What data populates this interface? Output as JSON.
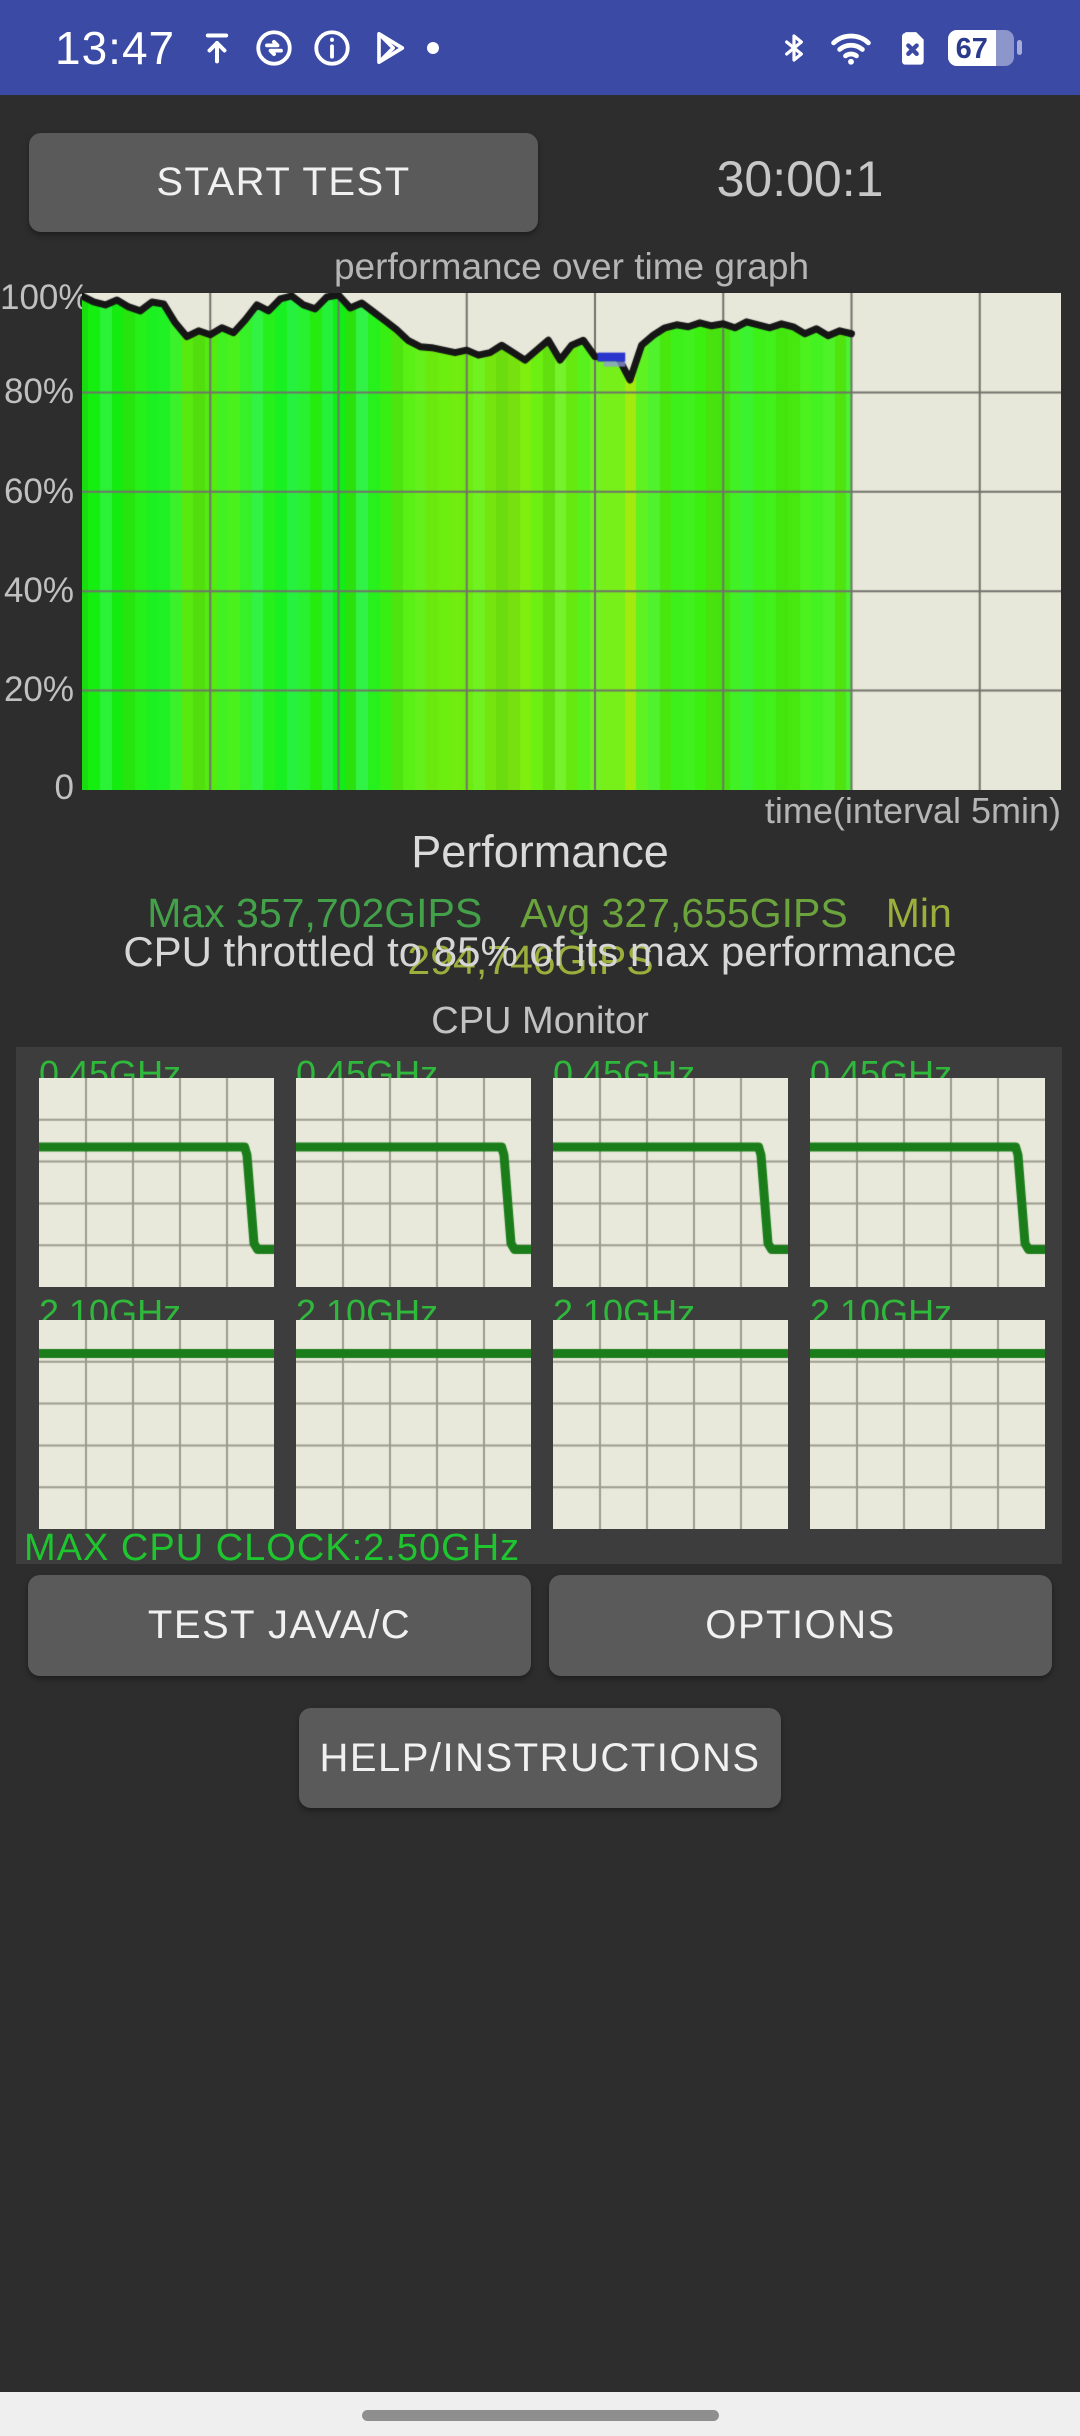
{
  "status_bar": {
    "time": "13:47",
    "battery_percent": "67",
    "bg_color": "#3B4AA5",
    "left_icons": [
      "upload-icon",
      "sync-icon",
      "info-icon",
      "play-store-icon",
      "notification-dot"
    ],
    "right_icons": [
      "bluetooth-icon",
      "wifi-icon",
      "sim-x-icon",
      "battery-icon"
    ]
  },
  "header": {
    "start_button_label": "START TEST",
    "timer": "30:00:1"
  },
  "chart_data": [
    {
      "id": "performance_graph",
      "type": "area",
      "title": "performance over time graph",
      "xlabel": "time(interval 5min)",
      "ytick_labels": [
        "100%",
        "80%",
        "60%",
        "40%",
        "20%",
        "0"
      ],
      "ylim": [
        0,
        100
      ],
      "x_interval_minutes": 5,
      "duration_minutes": 30,
      "data_end_frac": 0.786,
      "x_gridline_step_frac": 0.131,
      "grid_on": true,
      "values_percent": [
        99.4,
        98.2,
        97.6,
        98.6,
        97.2,
        96.4,
        98.2,
        97.8,
        94.0,
        91.2,
        92.4,
        91.6,
        93.0,
        92.0,
        94.6,
        97.6,
        96.4,
        98.8,
        99.4,
        97.6,
        96.8,
        99.2,
        99.6,
        97.0,
        98.0,
        96.2,
        94.4,
        92.6,
        90.4,
        89.2,
        89.0,
        88.5,
        88.0,
        88.5,
        87.5,
        88.0,
        89.5,
        88.0,
        86.5,
        88.5,
        90.5,
        86.5,
        89.5,
        90.5,
        87.2,
        87.0,
        87.0,
        82.5,
        89.5,
        91.5,
        93.0,
        93.6,
        93.2,
        94.0,
        93.4,
        93.8,
        93.0,
        94.2,
        93.6,
        93.0,
        93.8,
        93.2,
        91.8,
        92.8,
        91.4,
        92.4,
        91.8
      ],
      "blue_marker": {
        "start_frac": 0.67,
        "end_frac": 0.706,
        "value_percent": 87
      },
      "colors": {
        "plot_bg": "#E8E8DA",
        "grid": "#72726B",
        "line": "#161616",
        "marker_dark": "#2A35CE",
        "marker_light": "#9098E4"
      }
    },
    {
      "id": "cpu_monitor",
      "type": "line",
      "title": "CPU Monitor",
      "max_clock_label": "MAX CPU CLOCK:2.50GHz",
      "y_max_ghz": 2.5,
      "grid_divisions": 5,
      "cores": [
        {
          "label": "0.45GHz",
          "points": [
            [
              0,
              1.675
            ],
            [
              0.875,
              1.675
            ],
            [
              0.885,
              1.58
            ],
            [
              0.915,
              0.52
            ],
            [
              0.93,
              0.45
            ],
            [
              1,
              0.45
            ]
          ]
        },
        {
          "label": "0.45GHz",
          "points": [
            [
              0,
              1.675
            ],
            [
              0.875,
              1.675
            ],
            [
              0.885,
              1.58
            ],
            [
              0.915,
              0.52
            ],
            [
              0.93,
              0.45
            ],
            [
              1,
              0.45
            ]
          ]
        },
        {
          "label": "0.45GHz",
          "points": [
            [
              0,
              1.675
            ],
            [
              0.875,
              1.675
            ],
            [
              0.885,
              1.58
            ],
            [
              0.915,
              0.52
            ],
            [
              0.93,
              0.45
            ],
            [
              1,
              0.45
            ]
          ]
        },
        {
          "label": "0.45GHz",
          "points": [
            [
              0,
              1.675
            ],
            [
              0.875,
              1.675
            ],
            [
              0.885,
              1.58
            ],
            [
              0.915,
              0.52
            ],
            [
              0.93,
              0.45
            ],
            [
              1,
              0.45
            ]
          ]
        },
        {
          "label": "2.10GHz",
          "points": [
            [
              0,
              2.1
            ],
            [
              1,
              2.1
            ]
          ]
        },
        {
          "label": "2.10GHz",
          "points": [
            [
              0,
              2.1
            ],
            [
              1,
              2.1
            ]
          ]
        },
        {
          "label": "2.10GHz",
          "points": [
            [
              0,
              2.1
            ],
            [
              1,
              2.1
            ]
          ]
        },
        {
          "label": "2.10GHz",
          "points": [
            [
              0,
              2.1
            ],
            [
              1,
              2.1
            ]
          ]
        }
      ],
      "colors": {
        "plot_bg": "#E9E9DB",
        "grid": "#9C9C8E",
        "line": "#1A7D1A",
        "label": "#2FB83C",
        "max_clock": "#1EC52E",
        "panel_bg": "#3D3D3D"
      }
    }
  ],
  "performance_summary": {
    "title": "Performance",
    "stats": [
      {
        "label": "Max 357,702GIPS",
        "color": "#43A149"
      },
      {
        "label": "Avg 327,655GIPS",
        "color": "#6BA43C"
      },
      {
        "label": "Min 294,746GIPS",
        "color": "#9CAE3B"
      }
    ],
    "throttle_note": "CPU throttled to 85% of its max performance"
  },
  "buttons": {
    "test_java_c": "TEST JAVA/C",
    "options": "OPTIONS",
    "help": "HELP/INSTRUCTIONS"
  }
}
